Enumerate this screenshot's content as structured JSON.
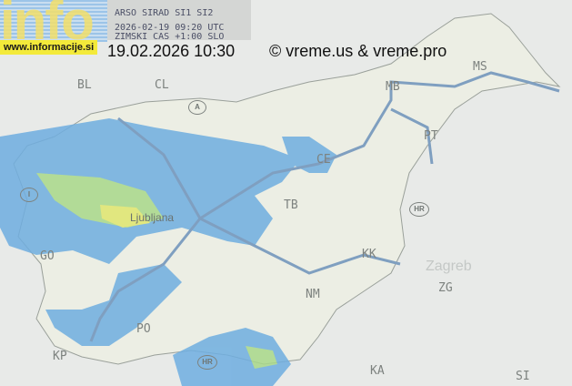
{
  "logo": {
    "text": "info",
    "website": "www.informacije.si"
  },
  "radar": {
    "source": "ARSO SIRAD SI1 SI2",
    "time_utc": "2026-02-19 09:20 UTC",
    "timezone": "ZIMSKI CAS +1:00 SLO"
  },
  "timestamp": "19.02.2026 10:30",
  "copyright": "© vreme.us & vreme.pro",
  "map": {
    "country_codes": [
      "A",
      "I",
      "HR",
      "HR",
      "HR"
    ],
    "city_codes": [
      "BL",
      "CL",
      "MB",
      "MS",
      "CE",
      "PT",
      "TB",
      "KK",
      "NM",
      "PO",
      "KP",
      "GO",
      "ZG",
      "KA",
      "SI"
    ],
    "city_names": [
      "Ljubljana",
      "Zagreb"
    ],
    "colors": {
      "background": "#e8eae8",
      "land": "#eceee6",
      "road": "#7f9fc0",
      "radar_light": "#7fb0e6",
      "radar_mid": "#5fa8d8",
      "radar_green": "#a8d88a",
      "radar_yellow": "#e6e870"
    }
  }
}
